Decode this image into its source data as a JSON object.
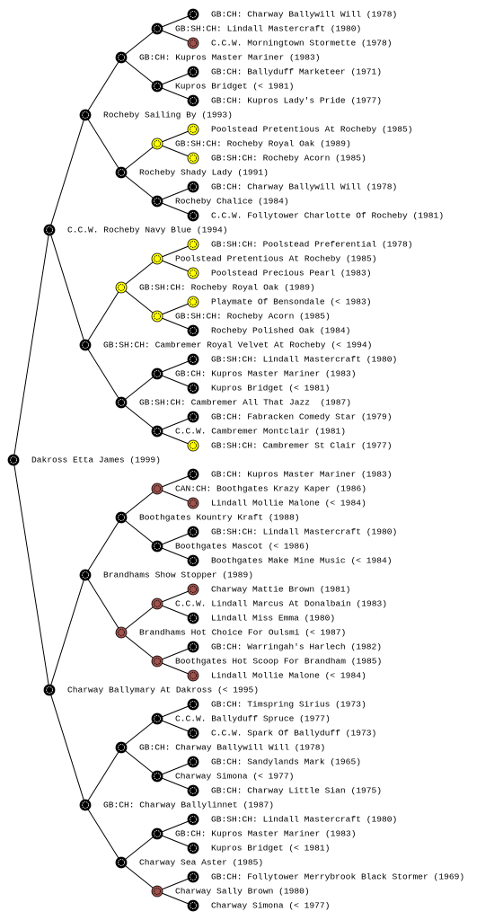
{
  "nodes": [
    {
      "label": "GB:CH: Charway Ballywill Will (1978)",
      "color": "#000000"
    },
    {
      "label": "GB:SH:CH: Lindall Mastercraft (1980)",
      "color": "#000000"
    },
    {
      "label": "C.C.W. Morningtown Stormette (1978)",
      "color": "#a0524d"
    },
    {
      "label": "GB:CH: Kupros Master Mariner (1983)",
      "color": "#000000"
    },
    {
      "label": "GB:CH: Ballyduff Marketeer (1971)",
      "color": "#000000"
    },
    {
      "label": "Kupros Bridget (< 1981)",
      "color": "#000000"
    },
    {
      "label": "GB:CH: Kupros Lady's Pride (1977)",
      "color": "#000000"
    },
    {
      "label": "Rocheby Sailing By (1993)",
      "color": "#000000"
    },
    {
      "label": "Poolstead Pretentious At Rocheby (1985)",
      "color": "#ffff00"
    },
    {
      "label": "GB:SH:CH: Rocheby Royal Oak (1989)",
      "color": "#ffff00"
    },
    {
      "label": "GB:SH:CH: Rocheby Acorn (1985)",
      "color": "#ffff00"
    },
    {
      "label": "Rocheby Shady Lady (1991)",
      "color": "#000000"
    },
    {
      "label": "GB:CH: Charway Ballywill Will (1978)",
      "color": "#000000"
    },
    {
      "label": "Rocheby Chalice (1984)",
      "color": "#000000"
    },
    {
      "label": "C.C.W. Follytower Charlotte Of Rocheby (1981)",
      "color": "#000000"
    },
    {
      "label": "C.C.W. Rocheby Navy Blue (1994)",
      "color": "#000000"
    },
    {
      "label": "GB:SH:CH: Poolstead Preferential (1978)",
      "color": "#ffff00"
    },
    {
      "label": "Poolstead Pretentious At Rocheby (1985)",
      "color": "#ffff00"
    },
    {
      "label": "Poolstead Precious Pearl (1983)",
      "color": "#ffff00"
    },
    {
      "label": "GB:SH:CH: Rocheby Royal Oak (1989)",
      "color": "#ffff00"
    },
    {
      "label": "Playmate Of Bensondale (< 1983)",
      "color": "#ffff00"
    },
    {
      "label": "GB:SH:CH: Rocheby Acorn (1985)",
      "color": "#ffff00"
    },
    {
      "label": "Rocheby Polished Oak (1984)",
      "color": "#000000"
    },
    {
      "label": "GB:SH:CH: Cambremer Royal Velvet At Rocheby (< 1994)",
      "color": "#000000"
    },
    {
      "label": "GB:SH:CH: Lindall Mastercraft (1980)",
      "color": "#000000"
    },
    {
      "label": "GB:CH: Kupros Master Mariner (1983)",
      "color": "#000000"
    },
    {
      "label": "Kupros Bridget (< 1981)",
      "color": "#000000"
    },
    {
      "label": "GB:SH:CH: Cambremer All That Jazz  (1987)",
      "color": "#000000"
    },
    {
      "label": "GB:CH: Fabracken Comedy Star (1979)",
      "color": "#000000"
    },
    {
      "label": "C.C.W. Cambremer Montclair (1981)",
      "color": "#000000"
    },
    {
      "label": "GB:SH:CH: Cambremer St Clair (1977)",
      "color": "#ffff00"
    },
    {
      "label": "Dakross Etta James (1999)",
      "color": "#000000"
    },
    {
      "label": "GB:CH: Kupros Master Mariner (1983)",
      "color": "#000000"
    },
    {
      "label": "CAN:CH: Boothgates Krazy Kaper (1986)",
      "color": "#a0524d"
    },
    {
      "label": "Lindall Mollie Malone (< 1984)",
      "color": "#a0524d"
    },
    {
      "label": "Boothgates Kountry Kraft (1988)",
      "color": "#000000"
    },
    {
      "label": "GB:SH:CH: Lindall Mastercraft (1980)",
      "color": "#000000"
    },
    {
      "label": "Boothgates Mascot (< 1986)",
      "color": "#000000"
    },
    {
      "label": "Boothgates Make Mine Music (< 1984)",
      "color": "#000000"
    },
    {
      "label": "Brandhams Show Stopper (1989)",
      "color": "#000000"
    },
    {
      "label": "Charway Mattie Brown (1981)",
      "color": "#a0524d"
    },
    {
      "label": "C.C.W. Lindall Marcus At Donalbain (1983)",
      "color": "#a0524d"
    },
    {
      "label": "Lindall Miss Emma (1980)",
      "color": "#000000"
    },
    {
      "label": "Brandhams Hot Choice For Oulsmi (< 1987)",
      "color": "#a0524d"
    },
    {
      "label": "GB:CH: Warringah's Harlech (1982)",
      "color": "#000000"
    },
    {
      "label": "Boothgates Hot Scoop For Brandham (1985)",
      "color": "#a0524d"
    },
    {
      "label": "Lindall Mollie Malone (< 1984)",
      "color": "#a0524d"
    },
    {
      "label": "Charway Ballymary At Dakross (< 1995)",
      "color": "#000000"
    },
    {
      "label": "GB:CH: Timspring Sirius (1973)",
      "color": "#000000"
    },
    {
      "label": "C.C.W. Ballyduff Spruce (1977)",
      "color": "#000000"
    },
    {
      "label": "C.C.W. Spark Of Ballyduff (1973)",
      "color": "#000000"
    },
    {
      "label": "GB:CH: Charway Ballywill Will (1978)",
      "color": "#000000"
    },
    {
      "label": "GB:CH: Sandylands Mark (1965)",
      "color": "#000000"
    },
    {
      "label": "Charway Simona (< 1977)",
      "color": "#000000"
    },
    {
      "label": "GB:CH: Charway Little Sian (1975)",
      "color": "#000000"
    },
    {
      "label": "GB:CH: Charway Ballylinnet (1987)",
      "color": "#000000"
    },
    {
      "label": "GB:SH:CH: Lindall Mastercraft (1980)",
      "color": "#000000"
    },
    {
      "label": "GB:CH: Kupros Master Mariner (1983)",
      "color": "#000000"
    },
    {
      "label": "Kupros Bridget (< 1981)",
      "color": "#000000"
    },
    {
      "label": "Charway Sea Aster (1985)",
      "color": "#000000"
    },
    {
      "label": "GB:CH: Follytower Merrybrook Black Stormer (1969)",
      "color": "#000000"
    },
    {
      "label": "Charway Sally Brown (1980)",
      "color": "#a0524d"
    },
    {
      "label": "Charway Simona (< 1977)",
      "color": "#000000"
    }
  ]
}
